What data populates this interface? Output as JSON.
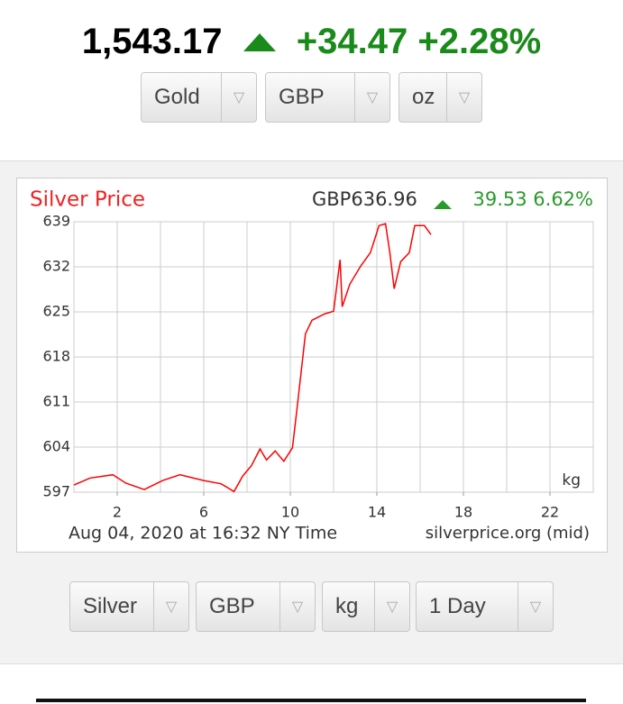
{
  "header": {
    "price": "1,543.17",
    "change": "+34.47",
    "change_pct": "+2.28%"
  },
  "top_selectors": [
    "Gold",
    "GBP",
    "oz"
  ],
  "chart_data": {
    "type": "line",
    "title": "Silver Price",
    "price_label": "GBP636.96",
    "change": "39.53",
    "change_pct": "6.62%",
    "x": [
      0,
      0.75,
      1.8,
      2.4,
      3.25,
      4.1,
      4.9,
      6.0,
      6.8,
      7.4,
      7.8,
      8.2,
      8.6,
      8.9,
      9.3,
      9.7,
      10.1,
      10.3,
      10.7,
      11.0,
      11.6,
      12.0,
      12.3,
      12.4,
      12.75,
      13.25,
      13.7,
      14.1,
      14.4,
      14.6,
      14.8,
      15.1,
      15.5,
      15.75,
      16.2,
      16.5
    ],
    "values": [
      598.1,
      599.2,
      599.7,
      598.4,
      597.4,
      598.8,
      599.7,
      598.8,
      598.3,
      597.1,
      599.5,
      601.1,
      603.7,
      602.0,
      603.4,
      601.8,
      603.9,
      609.7,
      621.6,
      623.7,
      624.7,
      625.1,
      633.1,
      625.8,
      629.3,
      632.1,
      634.2,
      638.4,
      638.7,
      634.2,
      628.6,
      632.8,
      634.2,
      638.4,
      638.4,
      637.0
    ],
    "color": "#ff0000",
    "xlim": [
      0,
      24
    ],
    "ylim": [
      597,
      639
    ],
    "xticks": [
      2,
      6,
      10,
      14,
      18,
      22
    ],
    "yticks": [
      597,
      604,
      611,
      618,
      625,
      632,
      639
    ],
    "xgrid": [
      0,
      2,
      4,
      6,
      8,
      10,
      12,
      14,
      16,
      18,
      20,
      22,
      24
    ],
    "grid": true,
    "unit_label": "kg",
    "timestamp": "Aug 04, 2020 at 16:32 NY Time",
    "source": "silverprice.org (mid)"
  },
  "bottom_selectors": [
    "Silver",
    "GBP",
    "kg",
    "1 Day"
  ]
}
